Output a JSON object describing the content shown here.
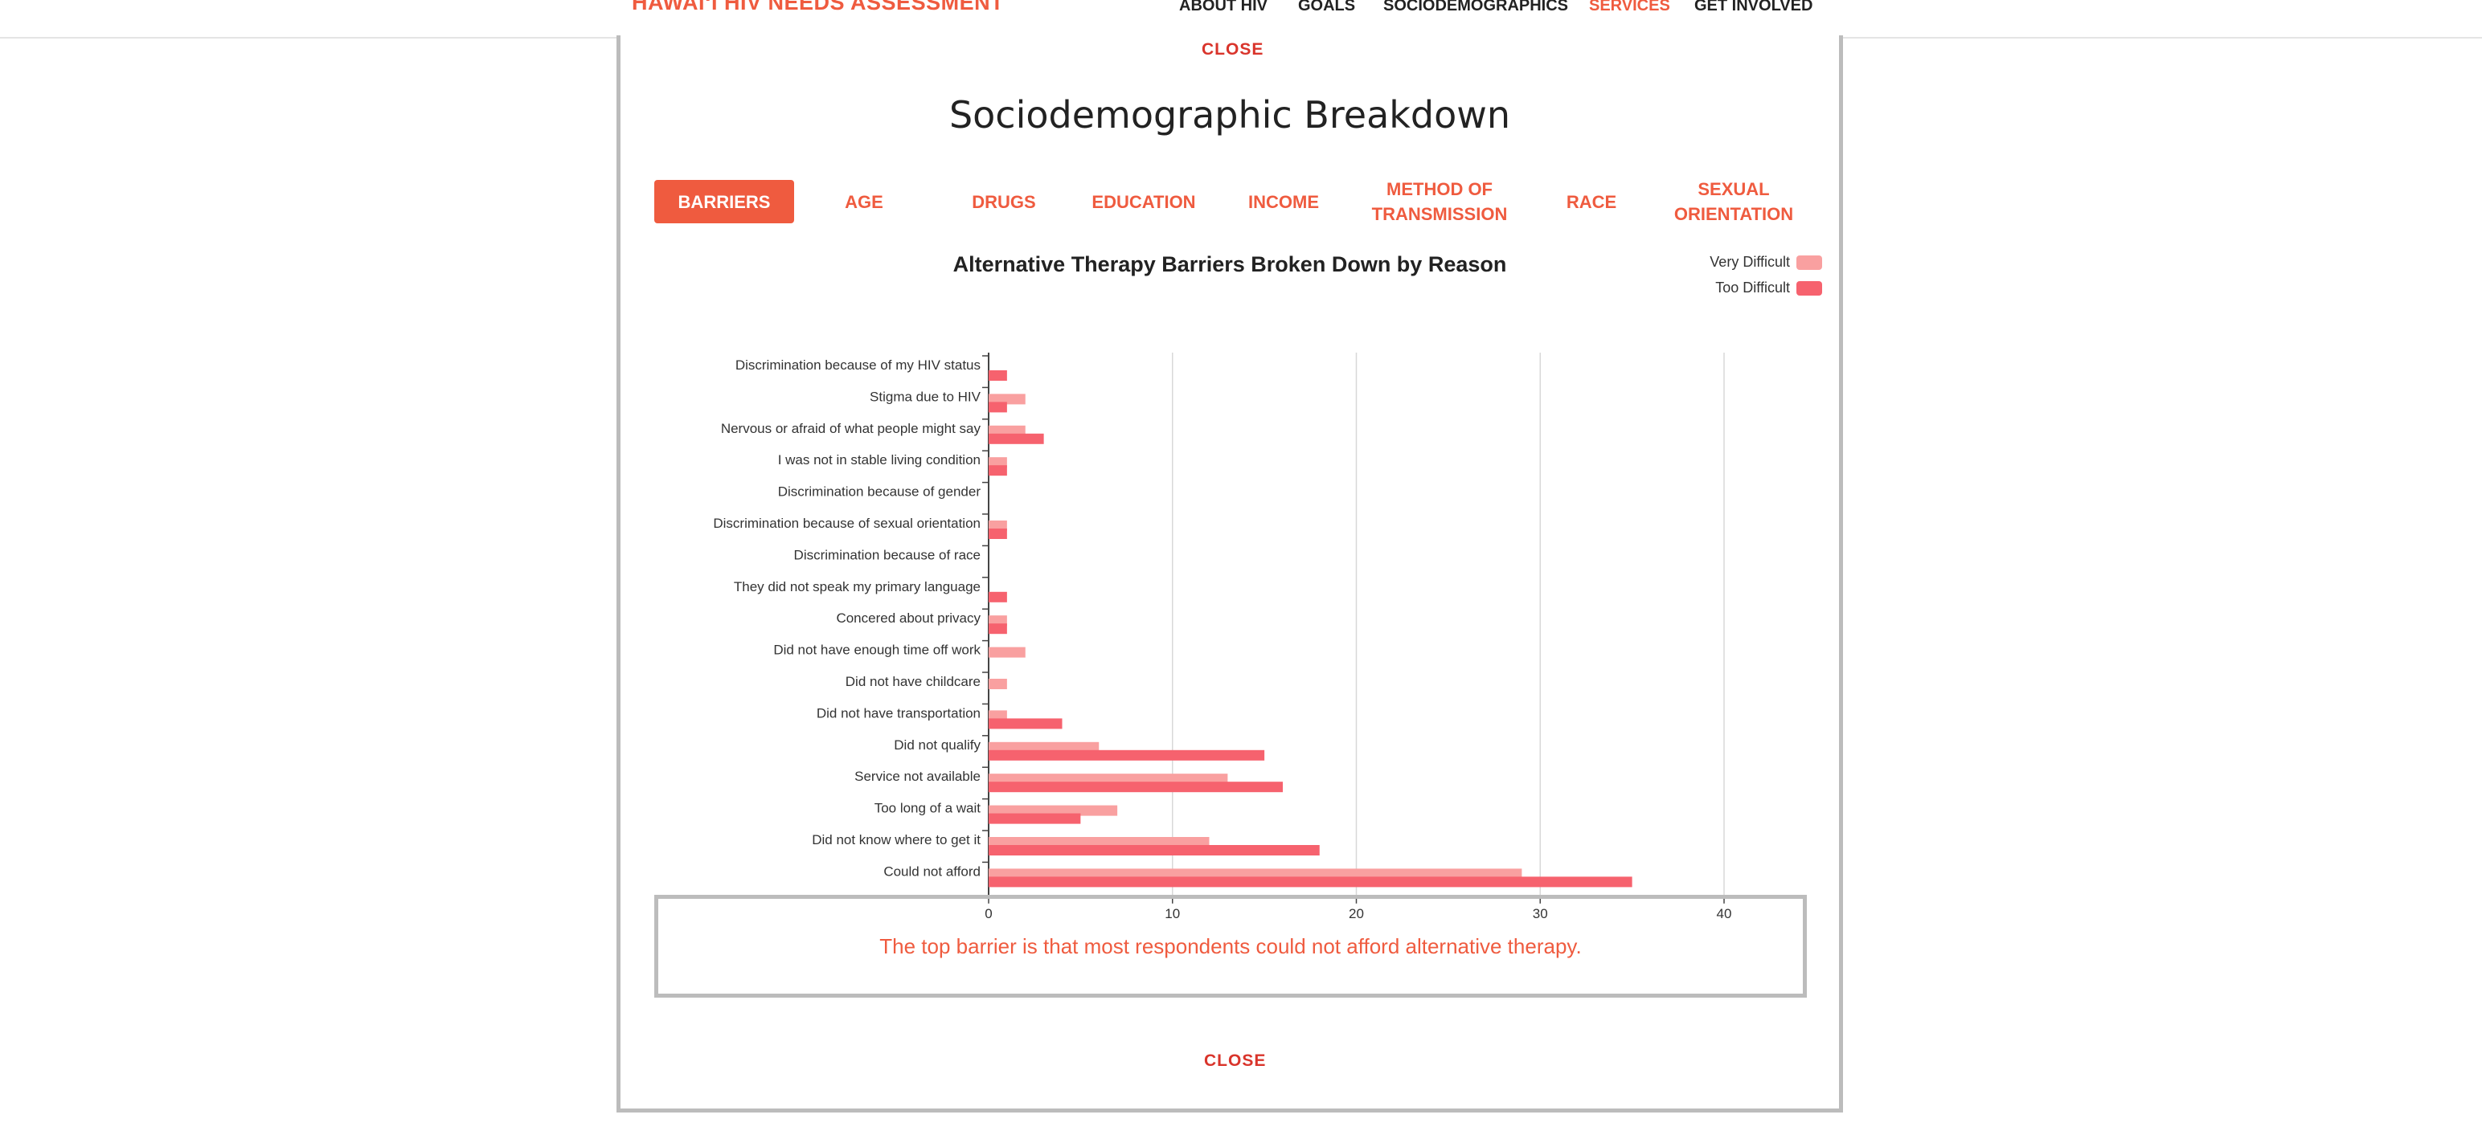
{
  "header": {
    "brand": "HAWAIʻI HIV NEEDS ASSESSMENT",
    "nav": [
      {
        "label": "ABOUT HIV",
        "active": false
      },
      {
        "label": "GOALS",
        "active": false
      },
      {
        "label": "SOCIODEMOGRAPHICS",
        "active": false
      },
      {
        "label": "SERVICES",
        "active": true
      },
      {
        "label": "GET INVOLVED",
        "active": false
      }
    ]
  },
  "modal": {
    "close_top": "CLOSE",
    "title": "Sociodemographic Breakdown",
    "tabs": [
      {
        "label": "BARRIERS",
        "active": true
      },
      {
        "label": "AGE",
        "active": false
      },
      {
        "label": "DRUGS",
        "active": false
      },
      {
        "label": "EDUCATION",
        "active": false
      },
      {
        "label": "INCOME",
        "active": false
      },
      {
        "label": "METHOD OF TRANSMISSION",
        "active": false
      },
      {
        "label": "RACE",
        "active": false
      },
      {
        "label": "SEXUAL ORIENTATION",
        "active": false
      }
    ],
    "caption": "The top barrier is that most respondents could not afford alternative therapy.",
    "close_bottom": "CLOSE"
  },
  "colors": {
    "accent": "#ef5b3f",
    "very_difficult": "#f9a0a0",
    "too_difficult": "#f6626e"
  },
  "chart_data": {
    "type": "bar",
    "orientation": "horizontal",
    "title": "Alternative Therapy Barriers Broken Down by Reason",
    "categories": [
      "Discrimination because of my HIV status",
      "Stigma due to HIV",
      "Nervous or afraid of what people might say",
      "I was not in stable living condition",
      "Discrimination because of gender",
      "Discrimination because of sexual orientation",
      "Discrimination because of race",
      "They did not speak my primary language",
      "Concered about privacy",
      "Did not have enough time off work",
      "Did not have childcare",
      "Did not have transportation",
      "Did not qualify",
      "Service not available",
      "Too long of a wait",
      "Did not know where to get it",
      "Could not afford"
    ],
    "series": [
      {
        "name": "Very Difficult",
        "values": [
          0,
          2,
          2,
          1,
          0,
          1,
          0,
          0,
          1,
          2,
          1,
          1,
          6,
          13,
          7,
          12,
          29
        ]
      },
      {
        "name": "Too Difficult",
        "values": [
          1,
          1,
          3,
          1,
          0,
          1,
          0,
          1,
          1,
          0,
          0,
          4,
          15,
          16,
          5,
          18,
          35
        ]
      }
    ],
    "xlim": [
      0,
      40
    ],
    "xticks": [
      0,
      10,
      20,
      30,
      40
    ],
    "grid": "vertical",
    "legend": "top-right"
  }
}
